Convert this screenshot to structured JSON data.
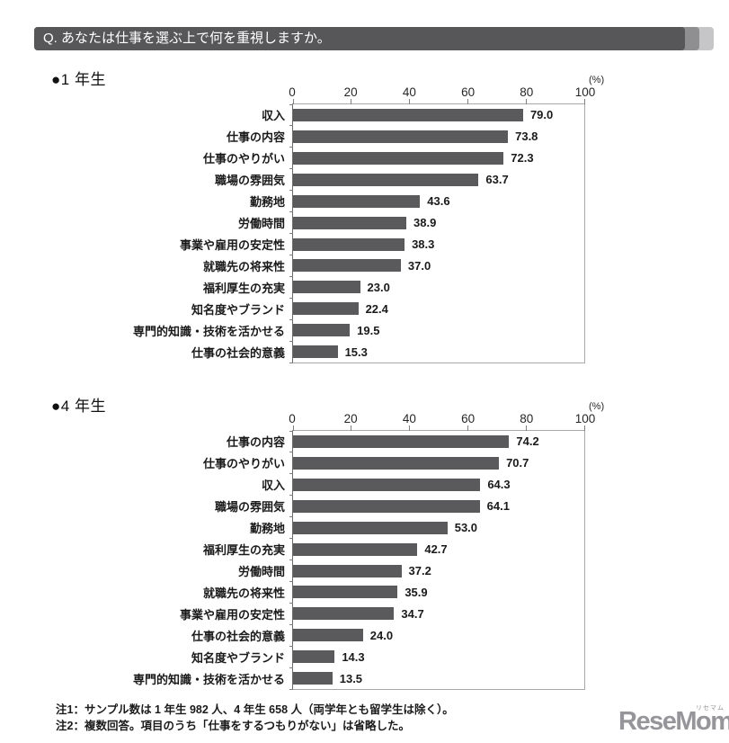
{
  "header": {
    "question": "Q. あなたは仕事を選ぶ上で何を重視しますか。"
  },
  "unit_label": "(%)",
  "axis_ticks": [
    "0",
    "20",
    "40",
    "60",
    "80",
    "100"
  ],
  "charts": [
    {
      "section_label": "●1 年生"
    },
    {
      "section_label": "●4 年生"
    }
  ],
  "notes": [
    "注1：サンプル数は 1 年生 982 人、4 年生 658 人（両学年とも留学生は除く）。",
    "注2：複数回答。項目のうち「仕事をするつもりがない」は省略した。"
  ],
  "logo": {
    "text": "ReseMom.",
    "ruby": "リセマム"
  },
  "colors": {
    "bar_fill": "#5a5a5c",
    "banner_dark": "#57575a",
    "banner_mid": "#8f8f91",
    "banner_light": "#c6c6c8",
    "logo_gray": "#96969a"
  },
  "chart_data": [
    {
      "type": "bar",
      "orientation": "horizontal",
      "title": "1 年生",
      "unit": "%",
      "xlim": [
        0,
        100
      ],
      "x_ticks": [
        0,
        20,
        40,
        60,
        80,
        100
      ],
      "grid": false,
      "categories": [
        "収入",
        "仕事の内容",
        "仕事のやりがい",
        "職場の雰囲気",
        "勤務地",
        "労働時間",
        "事業や雇用の安定性",
        "就職先の将来性",
        "福利厚生の充実",
        "知名度やブランド",
        "専門的知識・技術を活かせる",
        "仕事の社会的意義"
      ],
      "values": [
        79.0,
        73.8,
        72.3,
        63.7,
        43.6,
        38.9,
        38.3,
        37.0,
        23.0,
        22.4,
        19.5,
        15.3
      ]
    },
    {
      "type": "bar",
      "orientation": "horizontal",
      "title": "4 年生",
      "unit": "%",
      "xlim": [
        0,
        100
      ],
      "x_ticks": [
        0,
        20,
        40,
        60,
        80,
        100
      ],
      "grid": false,
      "categories": [
        "仕事の内容",
        "仕事のやりがい",
        "収入",
        "職場の雰囲気",
        "勤務地",
        "福利厚生の充実",
        "労働時間",
        "就職先の将来性",
        "事業や雇用の安定性",
        "仕事の社会的意義",
        "知名度やブランド",
        "専門的知識・技術を活かせる"
      ],
      "values": [
        74.2,
        70.7,
        64.3,
        64.1,
        53.0,
        42.7,
        37.2,
        35.9,
        34.7,
        24.0,
        14.3,
        13.5
      ]
    }
  ]
}
